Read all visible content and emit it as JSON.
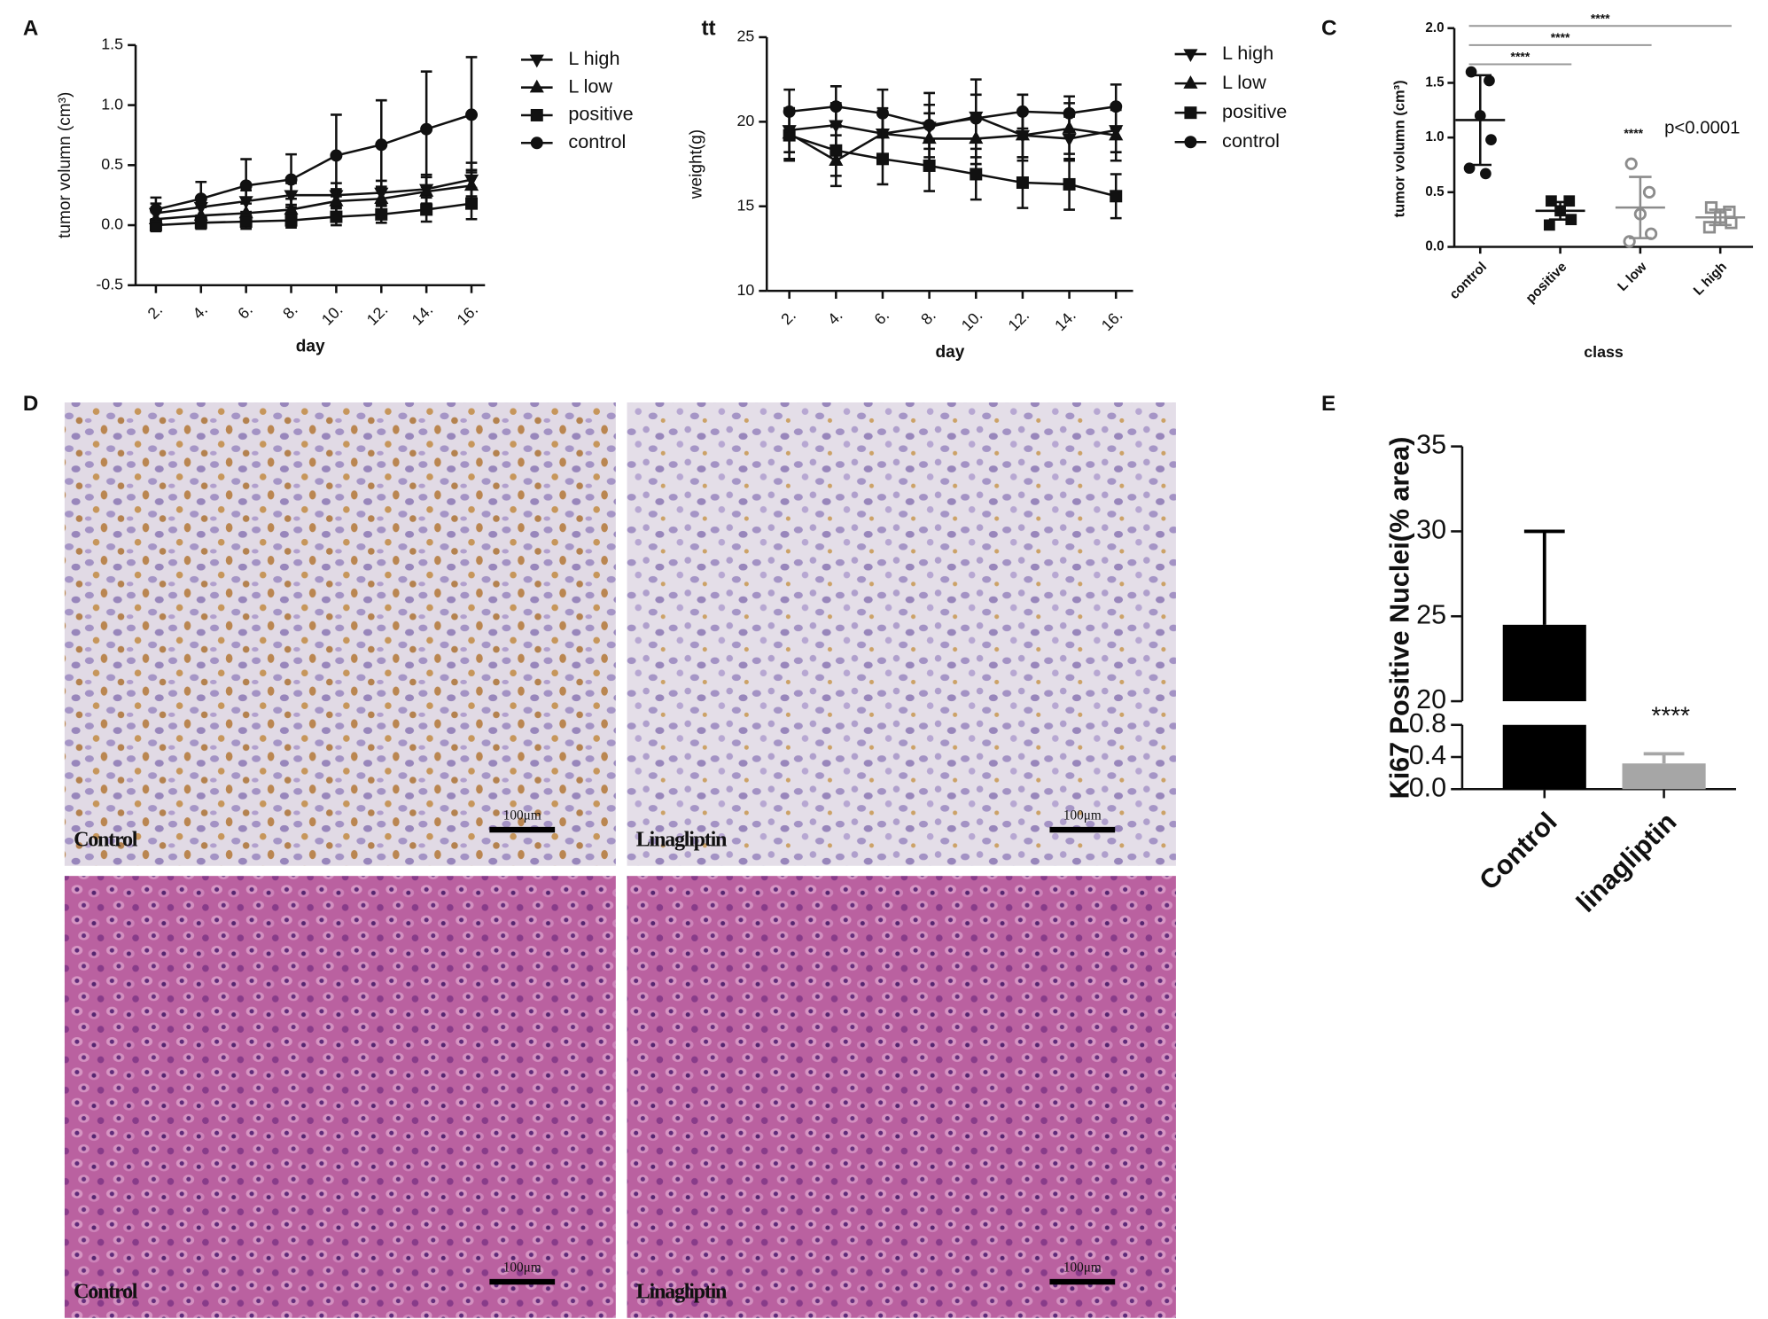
{
  "chart_data": [
    {
      "type": "line",
      "panel_label": "A",
      "xlabel": "day",
      "ylabel": "tumor volumn (cm³)",
      "categories": [
        "2.",
        "4.",
        "6.",
        "8.",
        "10.",
        "12.",
        "14.",
        "16."
      ],
      "ylim": [
        -0.5,
        1.5
      ],
      "yticks": [
        -0.5,
        {
          "value": 0,
          "label": "0.0"
        },
        0.5,
        {
          "value": 1,
          "label": "1.0"
        },
        1.5
      ],
      "series": [
        {
          "name": "L high",
          "color": "#111111",
          "marker": "tri-down",
          "values": [
            0.1,
            0.15,
            0.2,
            0.25,
            0.25,
            0.27,
            0.3,
            0.38
          ],
          "errors": [
            0.08,
            0.08,
            0.09,
            0.1,
            0.1,
            0.1,
            0.12,
            0.14
          ]
        },
        {
          "name": "L low",
          "color": "#111111",
          "marker": "tri-up",
          "values": [
            0.05,
            0.08,
            0.1,
            0.13,
            0.2,
            0.22,
            0.28,
            0.33
          ],
          "errors": [
            0.06,
            0.07,
            0.08,
            0.09,
            0.1,
            0.1,
            0.12,
            0.13
          ]
        },
        {
          "name": "positive",
          "color": "#111111",
          "marker": "square",
          "values": [
            0.0,
            0.02,
            0.03,
            0.04,
            0.07,
            0.09,
            0.13,
            0.18
          ],
          "errors": [
            0.05,
            0.05,
            0.06,
            0.06,
            0.07,
            0.07,
            0.1,
            0.13
          ]
        },
        {
          "name": "control",
          "color": "#111111",
          "marker": "circle",
          "values": [
            0.13,
            0.22,
            0.33,
            0.38,
            0.58,
            0.67,
            0.8,
            0.92
          ],
          "errors": [
            0.1,
            0.14,
            0.22,
            0.21,
            0.34,
            0.37,
            0.48,
            0.48
          ]
        }
      ]
    },
    {
      "type": "line",
      "panel_label": "tt",
      "xlabel": "day",
      "ylabel": "weight(g)",
      "categories": [
        "2.",
        "4.",
        "6.",
        "8.",
        "10.",
        "12.",
        "14.",
        "16."
      ],
      "ylim": [
        10,
        25
      ],
      "yticks": [
        10,
        15,
        20,
        25
      ],
      "series": [
        {
          "name": "L high",
          "color": "#111111",
          "marker": "tri-down",
          "values": [
            19.5,
            19.8,
            19.3,
            19.7,
            20.3,
            19.2,
            19.0,
            19.5
          ],
          "errors": [
            1.3,
            1.3,
            1.3,
            1.3,
            1.3,
            1.3,
            1.3,
            1.3
          ]
        },
        {
          "name": "L low",
          "color": "#111111",
          "marker": "tri-up",
          "values": [
            19.3,
            17.7,
            19.3,
            19.0,
            19.0,
            19.2,
            19.6,
            19.2
          ],
          "errors": [
            1.5,
            1.5,
            1.5,
            1.5,
            1.5,
            1.5,
            1.5,
            1.5
          ]
        },
        {
          "name": "positive",
          "color": "#111111",
          "marker": "square",
          "values": [
            19.2,
            18.3,
            17.8,
            17.4,
            16.9,
            16.4,
            16.3,
            15.6
          ],
          "errors": [
            1.5,
            1.5,
            1.5,
            1.5,
            1.5,
            1.5,
            1.5,
            1.3
          ]
        },
        {
          "name": "control",
          "color": "#111111",
          "marker": "circle",
          "values": [
            20.6,
            20.9,
            20.5,
            19.8,
            20.2,
            20.6,
            20.5,
            20.9
          ],
          "errors": [
            1.3,
            1.2,
            1.4,
            1.9,
            2.3,
            1.0,
            1.0,
            1.3
          ]
        }
      ]
    },
    {
      "type": "scatter",
      "panel_label": "C",
      "xlabel": "class",
      "ylabel": "tumor volumn (cm³)",
      "categories": [
        "control",
        "positive",
        "L low",
        "L high"
      ],
      "ylim": [
        0,
        2
      ],
      "yticks": [
        {
          "value": 0,
          "label": "0.0"
        },
        0.5,
        {
          "value": 1,
          "label": "1.0"
        },
        1.5,
        {
          "value": 2,
          "label": "2.0"
        }
      ],
      "colors": [
        "#111111",
        "#111111",
        "#8c8c8c",
        "#8c8c8c"
      ],
      "markers": [
        "circle",
        "square",
        "circle",
        "square"
      ],
      "filled": [
        true,
        true,
        false,
        false
      ],
      "points": [
        [
          1.6,
          1.52,
          1.2,
          0.98,
          0.72,
          0.67
        ],
        [
          0.42,
          0.42,
          0.33,
          0.25,
          0.2
        ],
        [
          0.76,
          0.5,
          0.3,
          0.12,
          0.05
        ],
        [
          0.36,
          0.32,
          0.27,
          0.22,
          0.18
        ]
      ],
      "means": [
        1.16,
        0.33,
        0.36,
        0.27
      ],
      "sds": [
        0.41,
        0.08,
        0.28,
        0.07
      ],
      "brackets": [
        {
          "from": 0,
          "to": 1,
          "label": "****"
        },
        {
          "from": 0,
          "to": 2,
          "label": "****"
        },
        {
          "from": 0,
          "to": 3,
          "label": "****"
        }
      ],
      "annotations": [
        "****",
        "p<0.0001"
      ]
    },
    {
      "type": "bar-broken",
      "panel_label": "E",
      "ylabel": "Ki67 Positive Nuclei(% area)",
      "categories": [
        "Control",
        "linagliptin"
      ],
      "values": [
        24.5,
        0.32
      ],
      "errors": [
        5.5,
        0.12
      ],
      "colors": [
        "#000000",
        "#a6a6a6"
      ],
      "segments": [
        {
          "ylim": [
            0,
            0.8
          ],
          "yticks": [
            {
              "value": 0,
              "label": "0.0"
            },
            0.4,
            0.8
          ]
        },
        {
          "ylim": [
            20,
            35
          ],
          "yticks": [
            20,
            25,
            30,
            35
          ]
        }
      ],
      "annotations": [
        "****"
      ]
    }
  ],
  "micrographs": {
    "panel_label": "D",
    "images": [
      {
        "label": "Control",
        "scale": "100μm",
        "stain": "ihc"
      },
      {
        "label": "Linagliptin",
        "scale": "100μm",
        "stain": "ihc-light"
      },
      {
        "label": "Control",
        "scale": "100μm",
        "stain": "he"
      },
      {
        "label": "Linagliptin",
        "scale": "100μm",
        "stain": "he"
      }
    ]
  }
}
